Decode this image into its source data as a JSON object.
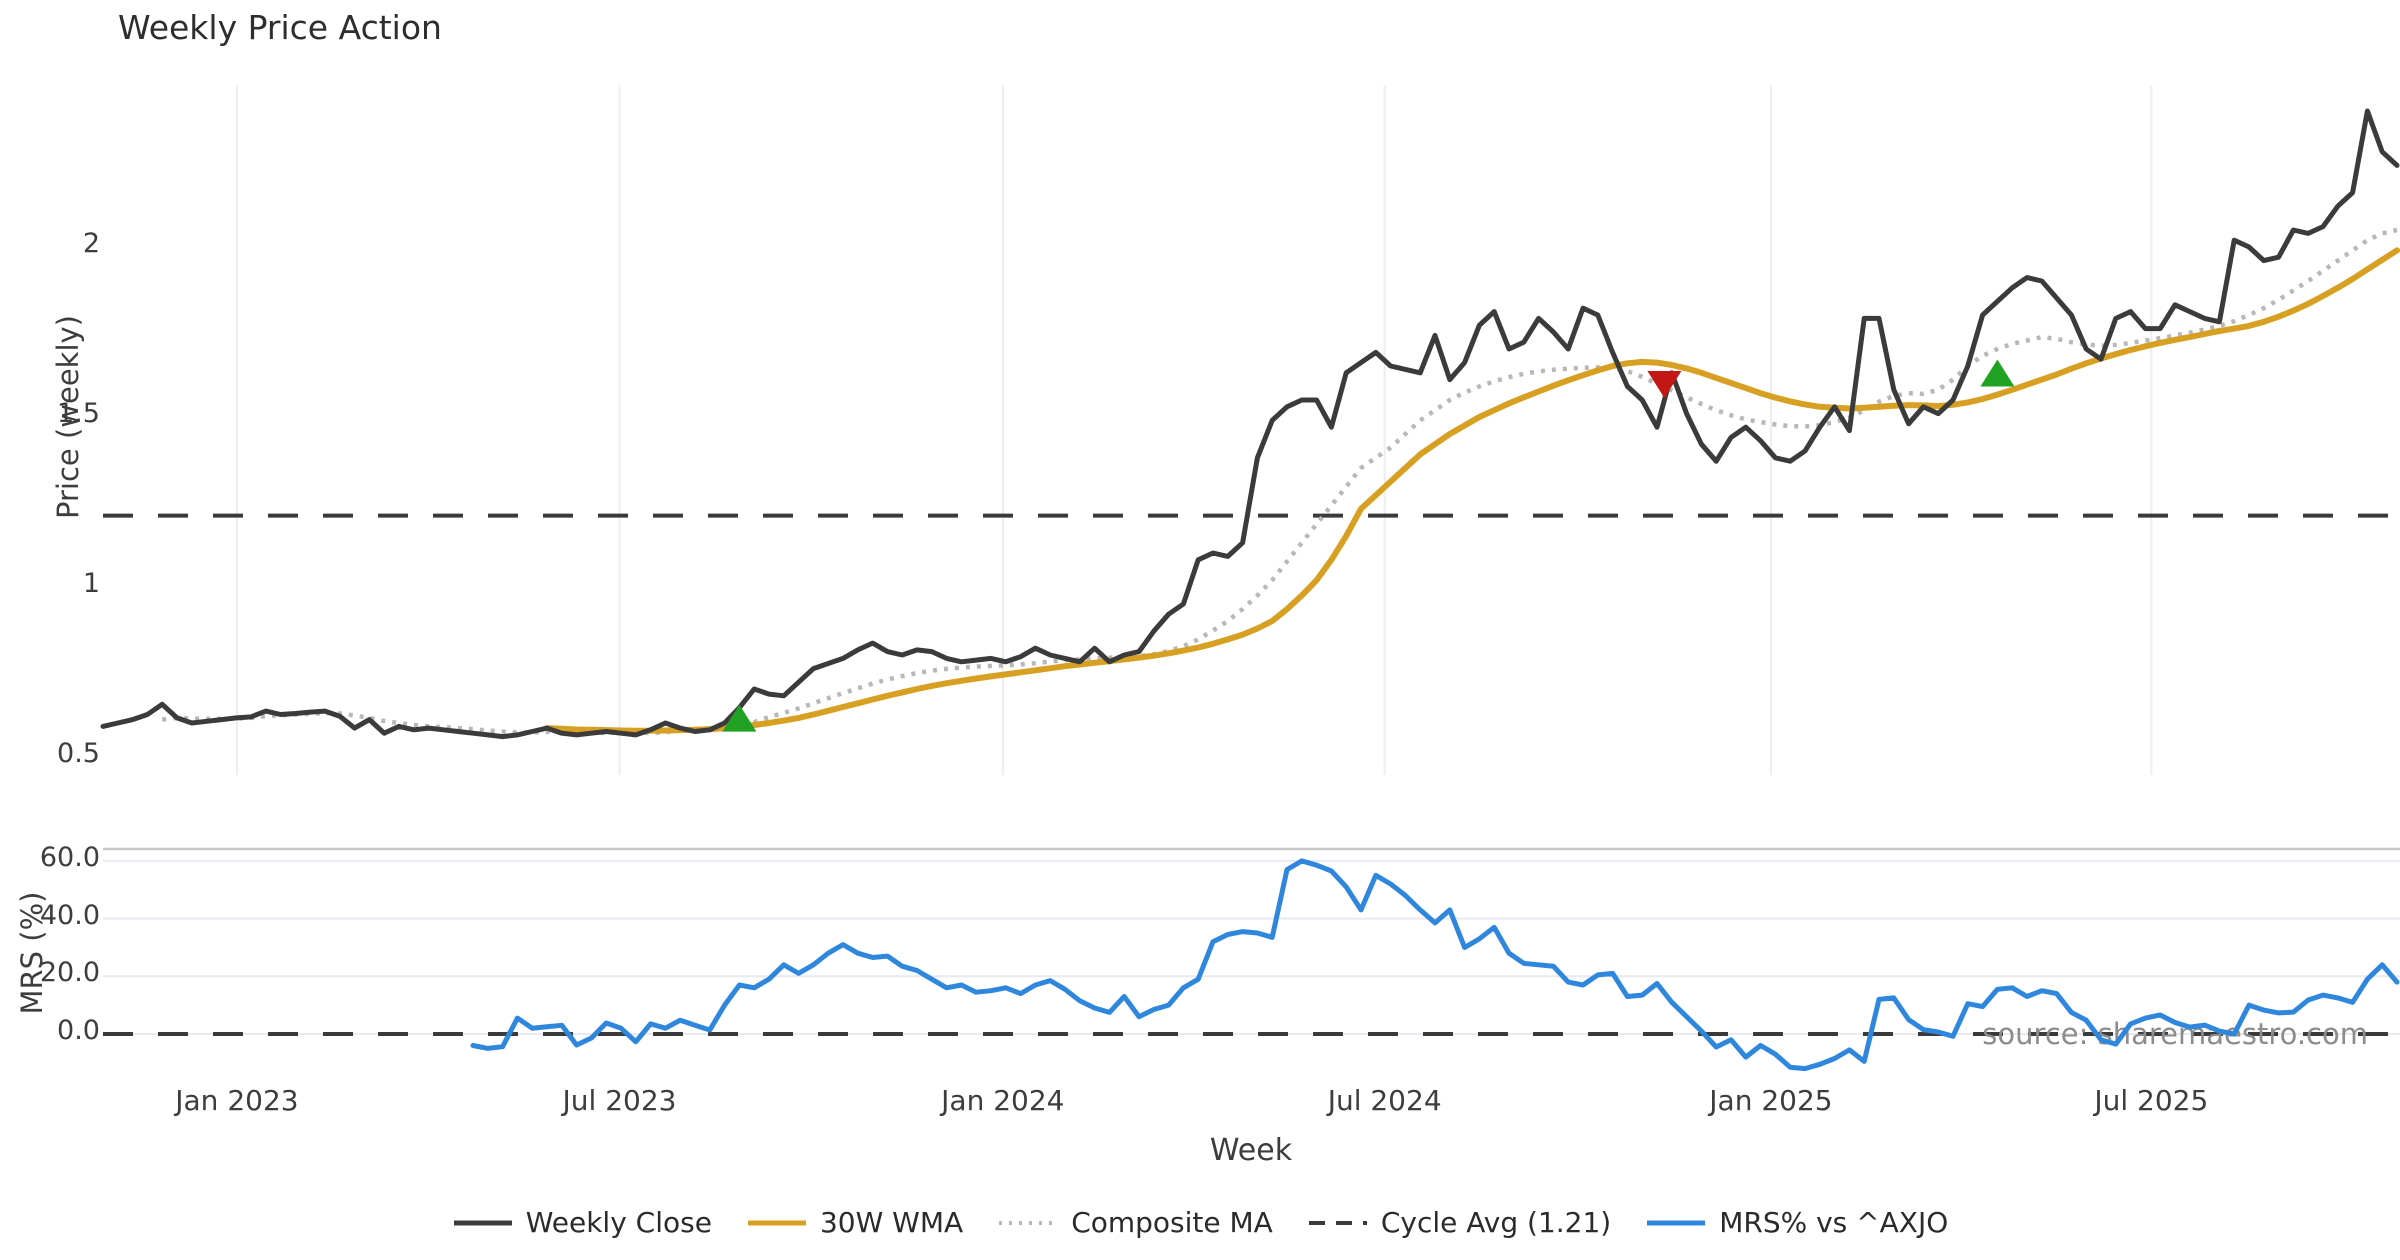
{
  "title": "Weekly Price Action",
  "watermark": "source: sharemaestro.com",
  "colors": {
    "close": "#3b3b3b",
    "wma": "#d7a022",
    "composite": "#b8b8b8",
    "cycle_avg": "#3a3a3a",
    "mrs": "#2f87dd",
    "buy_marker": "#21a121",
    "sell_marker": "#c51616",
    "gridline": "#ededed",
    "gridline_mrs": "#e9e9f1",
    "spine": "#c8c8c8",
    "tick_text": "#3d3d3d",
    "watermark_text": "#8c8c8c"
  },
  "legend": {
    "items": [
      {
        "label": "Weekly Close",
        "color": "#3b3b3b",
        "line_style": "solid"
      },
      {
        "label": "30W WMA",
        "color": "#d7a022",
        "line_style": "solid"
      },
      {
        "label": "Composite MA",
        "color": "#b8b8b8",
        "line_style": "dotted"
      },
      {
        "label": "Cycle Avg (1.21)",
        "color": "#3a3a3a",
        "line_style": "dashed"
      },
      {
        "label": "MRS% vs ^AXJO",
        "color": "#2f87dd",
        "line_style": "solid"
      }
    ]
  },
  "chart_data": [
    {
      "type": "line",
      "panel": "price",
      "title": "Weekly Price Action",
      "ylabel": "Price (weekly)",
      "ylim": [
        0.45,
        2.48
      ],
      "yticks": [
        2,
        1.5,
        1,
        0.5
      ],
      "ytick_labels": [
        "2",
        "1.5",
        "1",
        "0.5"
      ],
      "cycle_avg": 1.21,
      "x_tick_labels": [
        "Jan 2023",
        "Jul 2023",
        "Jan 2024",
        "Jul 2024",
        "Jan 2025",
        "Jul 2025"
      ],
      "x_start_week": "2022-10-31",
      "series": [
        {
          "name": "Weekly Close",
          "start_week": 0,
          "values": [
            0.59,
            0.6,
            0.61,
            0.625,
            0.655,
            0.615,
            0.6,
            0.605,
            0.61,
            0.615,
            0.618,
            0.635,
            0.625,
            0.628,
            0.632,
            0.635,
            0.62,
            0.585,
            0.61,
            0.57,
            0.59,
            0.58,
            0.585,
            0.58,
            0.575,
            0.57,
            0.565,
            0.56,
            0.565,
            0.575,
            0.585,
            0.57,
            0.565,
            0.57,
            0.575,
            0.57,
            0.565,
            0.58,
            0.6,
            0.585,
            0.575,
            0.58,
            0.6,
            0.645,
            0.7,
            0.685,
            0.68,
            0.72,
            0.76,
            0.775,
            0.79,
            0.815,
            0.835,
            0.81,
            0.8,
            0.815,
            0.81,
            0.79,
            0.78,
            0.785,
            0.79,
            0.78,
            0.795,
            0.82,
            0.8,
            0.79,
            0.78,
            0.82,
            0.78,
            0.8,
            0.81,
            0.87,
            0.92,
            0.95,
            1.08,
            1.1,
            1.09,
            1.13,
            1.38,
            1.49,
            1.53,
            1.55,
            1.55,
            1.47,
            1.63,
            1.66,
            1.69,
            1.65,
            1.64,
            1.63,
            1.74,
            1.61,
            1.66,
            1.77,
            1.81,
            1.7,
            1.72,
            1.79,
            1.75,
            1.7,
            1.82,
            1.8,
            1.69,
            1.59,
            1.55,
            1.47,
            1.63,
            1.51,
            1.42,
            1.37,
            1.44,
            1.47,
            1.43,
            1.38,
            1.37,
            1.4,
            1.47,
            1.53,
            1.46,
            1.79,
            1.79,
            1.58,
            1.48,
            1.53,
            1.51,
            1.55,
            1.65,
            1.8,
            1.84,
            1.88,
            1.91,
            1.9,
            1.85,
            1.8,
            1.7,
            1.67,
            1.79,
            1.81,
            1.76,
            1.76,
            1.83,
            1.81,
            1.79,
            1.78,
            2.02,
            2.0,
            1.96,
            1.97,
            2.05,
            2.04,
            2.06,
            2.12,
            2.16,
            2.4,
            2.28,
            2.24
          ]
        },
        {
          "name": "30W WMA",
          "start_week": 30,
          "values": [
            0.585,
            0.583,
            0.581,
            0.58,
            0.579,
            0.578,
            0.577,
            0.577,
            0.578,
            0.579,
            0.58,
            0.582,
            0.585,
            0.589,
            0.594,
            0.6,
            0.607,
            0.615,
            0.625,
            0.636,
            0.647,
            0.658,
            0.669,
            0.68,
            0.69,
            0.7,
            0.709,
            0.717,
            0.724,
            0.731,
            0.737,
            0.743,
            0.749,
            0.755,
            0.761,
            0.767,
            0.772,
            0.777,
            0.782,
            0.787,
            0.792,
            0.798,
            0.805,
            0.813,
            0.822,
            0.833,
            0.846,
            0.86,
            0.878,
            0.9,
            0.935,
            0.975,
            1.02,
            1.08,
            1.15,
            1.23,
            1.27,
            1.31,
            1.35,
            1.39,
            1.42,
            1.45,
            1.475,
            1.5,
            1.52,
            1.54,
            1.558,
            1.575,
            1.592,
            1.608,
            1.623,
            1.637,
            1.65,
            1.658,
            1.662,
            1.66,
            1.653,
            1.643,
            1.63,
            1.615,
            1.6,
            1.585,
            1.57,
            1.557,
            1.546,
            1.537,
            1.53,
            1.527,
            1.525,
            1.527,
            1.53,
            1.533,
            1.535,
            1.534,
            1.532,
            1.536,
            1.543,
            1.553,
            1.566,
            1.58,
            1.595,
            1.61,
            1.625,
            1.642,
            1.658,
            1.672,
            1.685,
            1.697,
            1.708,
            1.718,
            1.727,
            1.735,
            1.744,
            1.753,
            1.76,
            1.768,
            1.78,
            1.795,
            1.813,
            1.833,
            1.856,
            1.88,
            1.906,
            1.934,
            1.962,
            1.99
          ]
        },
        {
          "name": "Composite MA",
          "start_week": 4,
          "values": [
            0.61,
            0.615,
            0.613,
            0.612,
            0.612,
            0.613,
            0.615,
            0.62,
            0.623,
            0.625,
            0.627,
            0.629,
            0.628,
            0.622,
            0.615,
            0.606,
            0.6,
            0.594,
            0.59,
            0.588,
            0.585,
            0.582,
            0.578,
            0.575,
            0.572,
            0.572,
            0.574,
            0.575,
            0.573,
            0.571,
            0.571,
            0.572,
            0.571,
            0.571,
            0.573,
            0.577,
            0.579,
            0.579,
            0.582,
            0.59,
            0.603,
            0.617,
            0.63,
            0.643,
            0.658,
            0.673,
            0.688,
            0.702,
            0.716,
            0.728,
            0.738,
            0.747,
            0.754,
            0.759,
            0.763,
            0.766,
            0.768,
            0.77,
            0.772,
            0.776,
            0.781,
            0.785,
            0.787,
            0.79,
            0.792,
            0.794,
            0.797,
            0.802,
            0.812,
            0.826,
            0.846,
            0.872,
            0.9,
            0.935,
            0.975,
            1.02,
            1.075,
            1.13,
            1.185,
            1.24,
            1.295,
            1.35,
            1.38,
            1.41,
            1.45,
            1.49,
            1.52,
            1.55,
            1.572,
            1.59,
            1.605,
            1.617,
            1.627,
            1.634,
            1.639,
            1.642,
            1.645,
            1.646,
            1.644,
            1.635,
            1.618,
            1.598,
            1.578,
            1.558,
            1.538,
            1.52,
            1.505,
            1.493,
            1.485,
            1.478,
            1.473,
            1.472,
            1.476,
            1.485,
            1.498,
            1.52,
            1.545,
            1.562,
            1.57,
            1.568,
            1.58,
            1.61,
            1.65,
            1.68,
            1.7,
            1.715,
            1.725,
            1.735,
            1.73,
            1.72,
            1.713,
            1.71,
            1.712,
            1.718,
            1.725,
            1.732,
            1.74,
            1.748,
            1.757,
            1.768,
            1.782,
            1.8,
            1.82,
            1.845,
            1.872,
            1.9,
            1.93,
            1.96,
            1.99,
            2.02,
            2.04,
            2.05
          ]
        }
      ],
      "markers": [
        {
          "signal": "buy",
          "week": 43,
          "price": 0.61
        },
        {
          "signal": "sell",
          "week": 105.5,
          "price": 1.6
        },
        {
          "signal": "buy",
          "week": 128,
          "price": 1.625
        }
      ]
    },
    {
      "type": "line",
      "panel": "mrs",
      "ylabel": "MRS (%)",
      "xlabel": "Week",
      "ylim": [
        -15,
        64
      ],
      "yticks": [
        60,
        40,
        20,
        0
      ],
      "ytick_labels": [
        "60.0",
        "40.0",
        "20.0",
        "0.0"
      ],
      "zero_line": 0,
      "series": [
        {
          "name": "MRS% vs ^AXJO",
          "start_week": 25,
          "values": [
            -4,
            -5,
            -4.4,
            5.5,
            2,
            2.5,
            3,
            -3.8,
            -1.4,
            3.8,
            2,
            -2.7,
            3.5,
            2,
            4.8,
            3,
            1.4,
            10,
            17,
            16,
            19,
            24,
            21,
            24,
            28,
            31,
            28,
            26.5,
            27,
            23.5,
            22,
            19,
            16,
            17,
            14.5,
            15,
            16,
            14,
            17,
            18.5,
            15.5,
            11.5,
            9,
            7.5,
            13,
            6,
            8.5,
            10,
            16,
            19,
            32,
            34.5,
            35.5,
            35,
            33.5,
            57,
            60,
            58.5,
            56.5,
            51,
            43,
            55,
            52,
            48,
            43,
            38.5,
            43,
            30,
            33,
            37,
            28,
            24.5,
            24,
            23.5,
            18,
            17,
            20.5,
            21,
            13,
            13.5,
            17.5,
            11,
            6,
            1,
            -4.5,
            -2,
            -8,
            -4,
            -7,
            -11.5,
            -12,
            -10.5,
            -8.5,
            -5.5,
            -9.5,
            12,
            12.5,
            5,
            1.5,
            0.7,
            -0.8,
            10.5,
            9.5,
            15.5,
            16,
            13,
            15,
            14,
            7.5,
            4.8,
            -2,
            -3.5,
            3.5,
            5.5,
            6.6,
            4,
            2.4,
            3.1,
            1,
            0,
            10,
            8.3,
            7.3,
            7.6,
            11.8,
            13.5,
            12.5,
            11,
            19,
            24,
            18
          ]
        }
      ]
    }
  ]
}
